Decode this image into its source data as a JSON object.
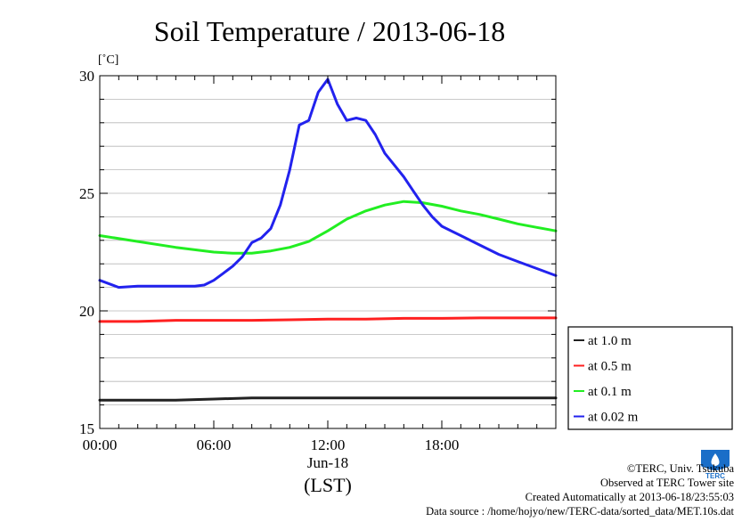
{
  "chart_data": {
    "type": "line",
    "title": "Soil Temperature / 2013-06-18",
    "ylabel": "[˚C]",
    "xlabel_date": "Jun-18",
    "xlabel": "(LST)",
    "xlim": [
      0,
      24
    ],
    "ylim": [
      15,
      30
    ],
    "x_ticks": [
      {
        "value": 0,
        "label": "00:00"
      },
      {
        "value": 6,
        "label": "06:00"
      },
      {
        "value": 12,
        "label": "12:00"
      },
      {
        "value": 18,
        "label": "18:00"
      }
    ],
    "y_ticks": [
      {
        "value": 15,
        "label": "15"
      },
      {
        "value": 20,
        "label": "20"
      },
      {
        "value": 25,
        "label": "25"
      },
      {
        "value": 30,
        "label": "30"
      }
    ],
    "grid": true,
    "legend_position": "right",
    "series": [
      {
        "name": "at 1.0 m",
        "color": "#222222",
        "x": [
          0,
          2,
          4,
          6,
          8,
          10,
          12,
          14,
          16,
          18,
          20,
          22,
          24
        ],
        "y": [
          16.2,
          16.2,
          16.2,
          16.25,
          16.3,
          16.3,
          16.3,
          16.3,
          16.3,
          16.3,
          16.3,
          16.3,
          16.3
        ]
      },
      {
        "name": "at 0.5 m",
        "color": "#ff2020",
        "x": [
          0,
          2,
          4,
          6,
          8,
          10,
          12,
          14,
          16,
          18,
          20,
          22,
          24
        ],
        "y": [
          19.55,
          19.55,
          19.6,
          19.6,
          19.6,
          19.62,
          19.65,
          19.65,
          19.68,
          19.68,
          19.7,
          19.7,
          19.7
        ]
      },
      {
        "name": "at 0.1 m",
        "color": "#22ee22",
        "x": [
          0,
          2,
          4,
          6,
          7,
          8,
          9,
          10,
          11,
          12,
          13,
          14,
          15,
          16,
          17,
          18,
          19,
          20,
          21,
          22,
          23,
          24
        ],
        "y": [
          23.2,
          22.95,
          22.7,
          22.5,
          22.45,
          22.45,
          22.55,
          22.7,
          22.95,
          23.4,
          23.9,
          24.25,
          24.5,
          24.65,
          24.6,
          24.45,
          24.25,
          24.1,
          23.9,
          23.7,
          23.55,
          23.4
        ]
      },
      {
        "name": "at 0.02 m",
        "color": "#2222ee",
        "x": [
          0,
          1,
          2,
          3,
          4,
          5,
          5.5,
          6,
          6.5,
          7,
          7.5,
          8,
          8.5,
          9,
          9.5,
          10,
          10.5,
          11,
          11.5,
          12,
          12.5,
          13,
          13.5,
          14,
          14.5,
          15,
          15.5,
          16,
          16.5,
          17,
          17.5,
          18,
          19,
          20,
          21,
          22,
          23,
          24
        ],
        "y": [
          21.3,
          21.0,
          21.05,
          21.05,
          21.05,
          21.05,
          21.1,
          21.3,
          21.6,
          21.9,
          22.3,
          22.9,
          23.1,
          23.5,
          24.5,
          26.0,
          27.9,
          28.1,
          29.3,
          29.85,
          28.8,
          28.1,
          28.2,
          28.1,
          27.5,
          26.7,
          26.2,
          25.7,
          25.1,
          24.5,
          24.0,
          23.6,
          23.2,
          22.8,
          22.4,
          22.1,
          21.8,
          21.5
        ]
      }
    ]
  },
  "credits": {
    "copyright": "©TERC, Univ. Tsukuba",
    "observed": "Observed at TERC Tower site",
    "created": "Created Automatically at 2013-06-18/23:55:03",
    "source": "Data source : /home/hojyo/new/TERC-data/sorted_data/MET.10s.dat"
  },
  "logo": {
    "text": "TERC",
    "color": "#1a6ec8"
  }
}
